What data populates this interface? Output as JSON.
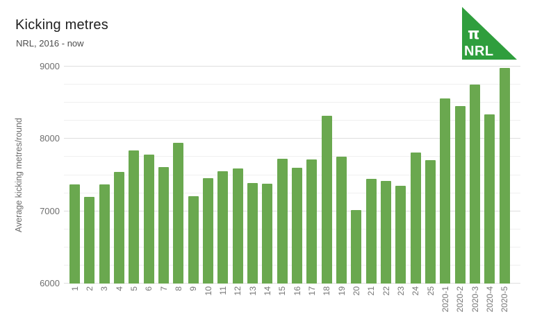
{
  "header": {
    "title": "Kicking metres",
    "subtitle": "NRL, 2016 - now"
  },
  "logo": {
    "pi_symbol": "π",
    "wordmark": "NRL",
    "color": "#2f9e3d",
    "text_color": "#ffffff"
  },
  "chart_data": {
    "type": "bar",
    "title": "Kicking metres",
    "subtitle": "NRL, 2016 - now",
    "xlabel": "",
    "ylabel": "Average kicking metres/round",
    "ylim": [
      6000,
      9000
    ],
    "yticks": [
      "6000",
      "7000",
      "8000",
      "9000"
    ],
    "ytick_values": [
      6000,
      7000,
      8000,
      9000
    ],
    "minor_grid_step": 250,
    "grid": true,
    "legend": "none",
    "bar_color": "#6aa84f",
    "categories": [
      "1",
      "2",
      "3",
      "4",
      "5",
      "6",
      "7",
      "8",
      "9",
      "10",
      "11",
      "12",
      "13",
      "14",
      "15",
      "16",
      "17",
      "18",
      "19",
      "20",
      "21",
      "22",
      "23",
      "24",
      "25",
      "2020-1",
      "2020-2",
      "2020-3",
      "2020-4",
      "2020-5"
    ],
    "values": [
      7370,
      7200,
      7370,
      7540,
      7840,
      7780,
      7610,
      7950,
      7210,
      7460,
      7550,
      7590,
      7390,
      7380,
      7730,
      7600,
      7720,
      8320,
      7750,
      7020,
      7450,
      7420,
      7350,
      7810,
      7710,
      8560,
      8450,
      8750,
      8340,
      8980
    ]
  },
  "colors": {
    "major_gridline": "#dedede",
    "minor_gridline": "#efefef",
    "axis_text": "#6e6e6e",
    "background": "#ffffff"
  }
}
